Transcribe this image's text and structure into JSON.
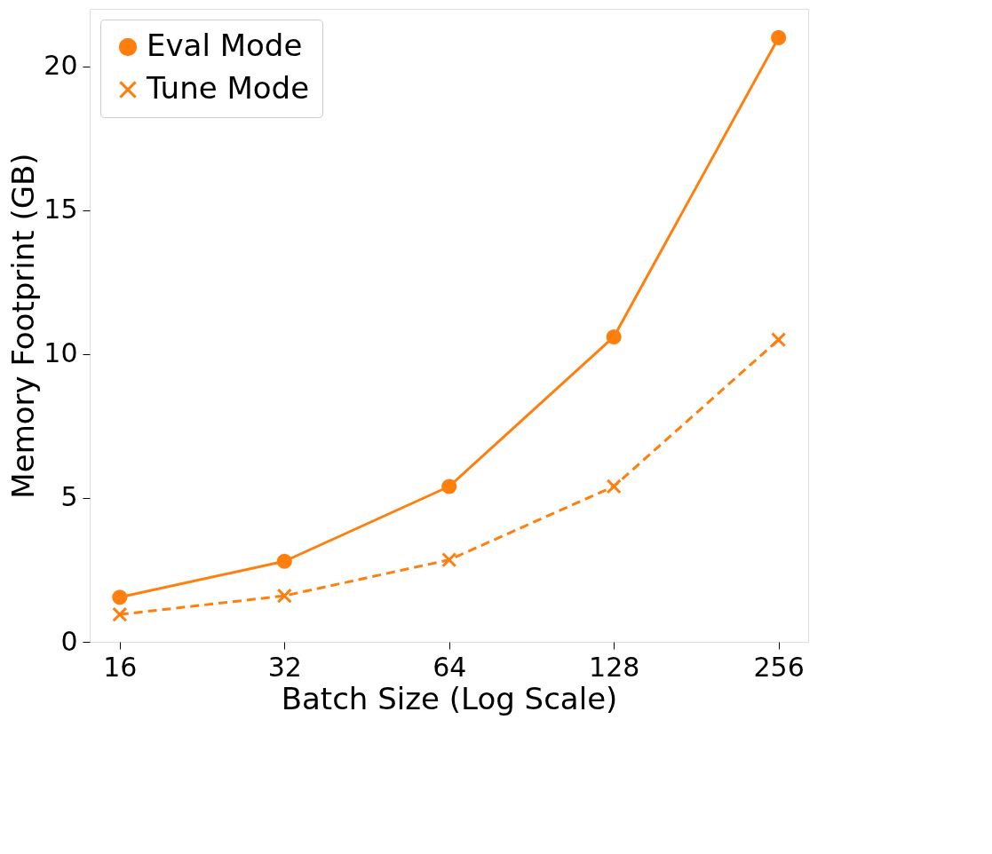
{
  "chart_data": {
    "type": "line",
    "xlabel": "Batch Size (Log Scale)",
    "ylabel": "Memory Footprint (GB)",
    "x": [
      16,
      32,
      64,
      128,
      256
    ],
    "series": [
      {
        "name": "Eval Mode",
        "color": "#ff7f0e",
        "marker": "circle",
        "line_style": "solid",
        "values": [
          1.55,
          2.8,
          5.4,
          10.6,
          21.0
        ]
      },
      {
        "name": "Tune Mode",
        "color": "#ff7f0e",
        "marker": "cross",
        "line_style": "dashed",
        "values": [
          0.95,
          1.6,
          2.85,
          5.4,
          10.5
        ]
      }
    ],
    "log": "x",
    "xlim": [
      14.1,
      290
    ],
    "xticks": [
      16,
      32,
      64,
      128,
      256
    ],
    "ylim": [
      0,
      22
    ],
    "yticks": [
      0,
      5,
      10,
      15,
      20
    ],
    "grid": false,
    "legend": "top left"
  }
}
